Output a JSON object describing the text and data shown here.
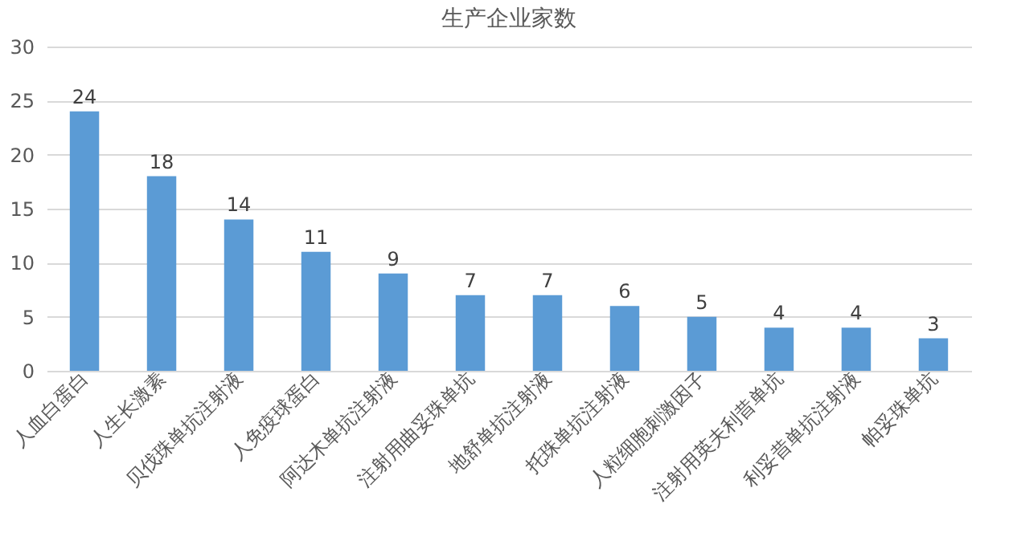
{
  "chart_data": {
    "type": "bar",
    "title": "生产企业家数",
    "categories": [
      "人血白蛋白",
      "人生长激素",
      "贝伐珠单抗注射液",
      "人免疫球蛋白",
      "阿达木单抗注射液",
      "注射用曲妥珠单抗",
      "地舒单抗注射液",
      "托珠单抗注射液",
      "人粒细胞刺激因子",
      "注射用英夫利昔单抗",
      "利妥昔单抗注射液",
      "帕妥珠单抗"
    ],
    "values": [
      24,
      18,
      14,
      11,
      9,
      7,
      7,
      6,
      5,
      4,
      4,
      3
    ],
    "color": "#5b9bd5",
    "ylim": [
      0,
      30
    ],
    "yticks": [
      0,
      5,
      10,
      15,
      20,
      25,
      30
    ],
    "grid": "y",
    "data_labels": true
  }
}
